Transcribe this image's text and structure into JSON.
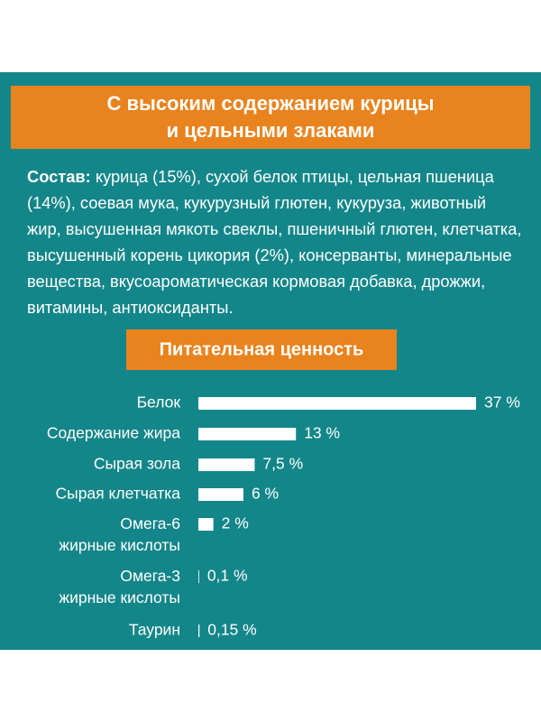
{
  "header": {
    "title_lines": [
      "С высоким содержанием курицы",
      "и цельными злаками"
    ]
  },
  "composition": {
    "label": "Состав:",
    "text": "курица (15%), сухой белок птицы, цельная пшеница (14%), соевая мука, кукурузный глютен, кукуруза, животный жир, высушенная мякоть свеклы, пшеничный глютен, клетчатка, высушенный корень цикория (2%), консерванты, минеральные вещества, вкусоароматическая кормовая добавка, дрожжи, витамины, антиоксиданты."
  },
  "chart_data": {
    "type": "hbar",
    "title": "Питательная ценность",
    "color": "#ffffff",
    "categories": [
      "Белок",
      "Содержание жира",
      "Сырая зола",
      "Сырая клетчатка",
      "Омега-6\nжирные кислоты",
      "Омега-3\nжирные кислоты",
      "Таурин"
    ],
    "values": [
      37,
      13,
      7.5,
      6,
      2,
      0.1,
      0.15
    ],
    "value_labels": [
      "37 %",
      "13 %",
      "7,5 %",
      "6 %",
      "2 %",
      "0,1 %",
      "0,15 %"
    ]
  }
}
